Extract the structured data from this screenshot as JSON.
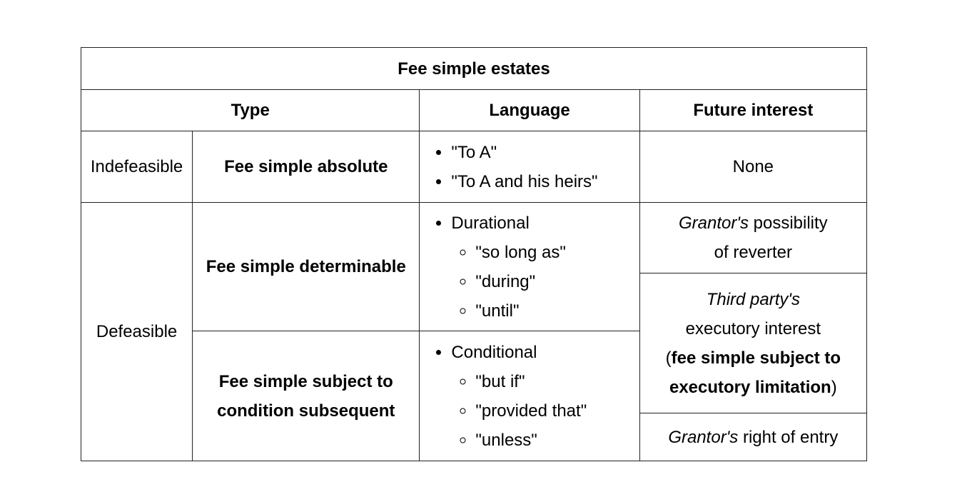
{
  "table": {
    "title": "Fee simple estates",
    "headers": {
      "type": "Type",
      "language": "Language",
      "future_interest": "Future interest"
    },
    "indefeasible": {
      "category": "Indefeasible",
      "estate": "Fee simple absolute",
      "language": [
        "\"To A\"",
        "\"To A and his heirs\""
      ],
      "future_interest": "None"
    },
    "defeasible": {
      "category": "Defeasible",
      "determinable": {
        "estate": "Fee simple determinable",
        "language_head": "Durational",
        "language_items": [
          "\"so long as\"",
          "\"during\"",
          "\"until\""
        ]
      },
      "condition_subsequent": {
        "estate_line1": "Fee simple subject to",
        "estate_line2": "condition subsequent",
        "language_head": "Conditional",
        "language_items": [
          "\"but if\"",
          "\"provided that\"",
          "\"unless\""
        ]
      },
      "future": {
        "reverter_italic": "Grantor's",
        "reverter_line1_rest": " possibility",
        "reverter_line2": "of reverter",
        "executory_italic": "Third party's",
        "executory_line2": "executory interest",
        "executory_paren_open": "(",
        "executory_bold1": "fee simple subject to",
        "executory_bold2": "executory limitation",
        "executory_paren_close": ")",
        "entry_italic": "Grantor's",
        "entry_rest": " right of entry"
      }
    }
  }
}
